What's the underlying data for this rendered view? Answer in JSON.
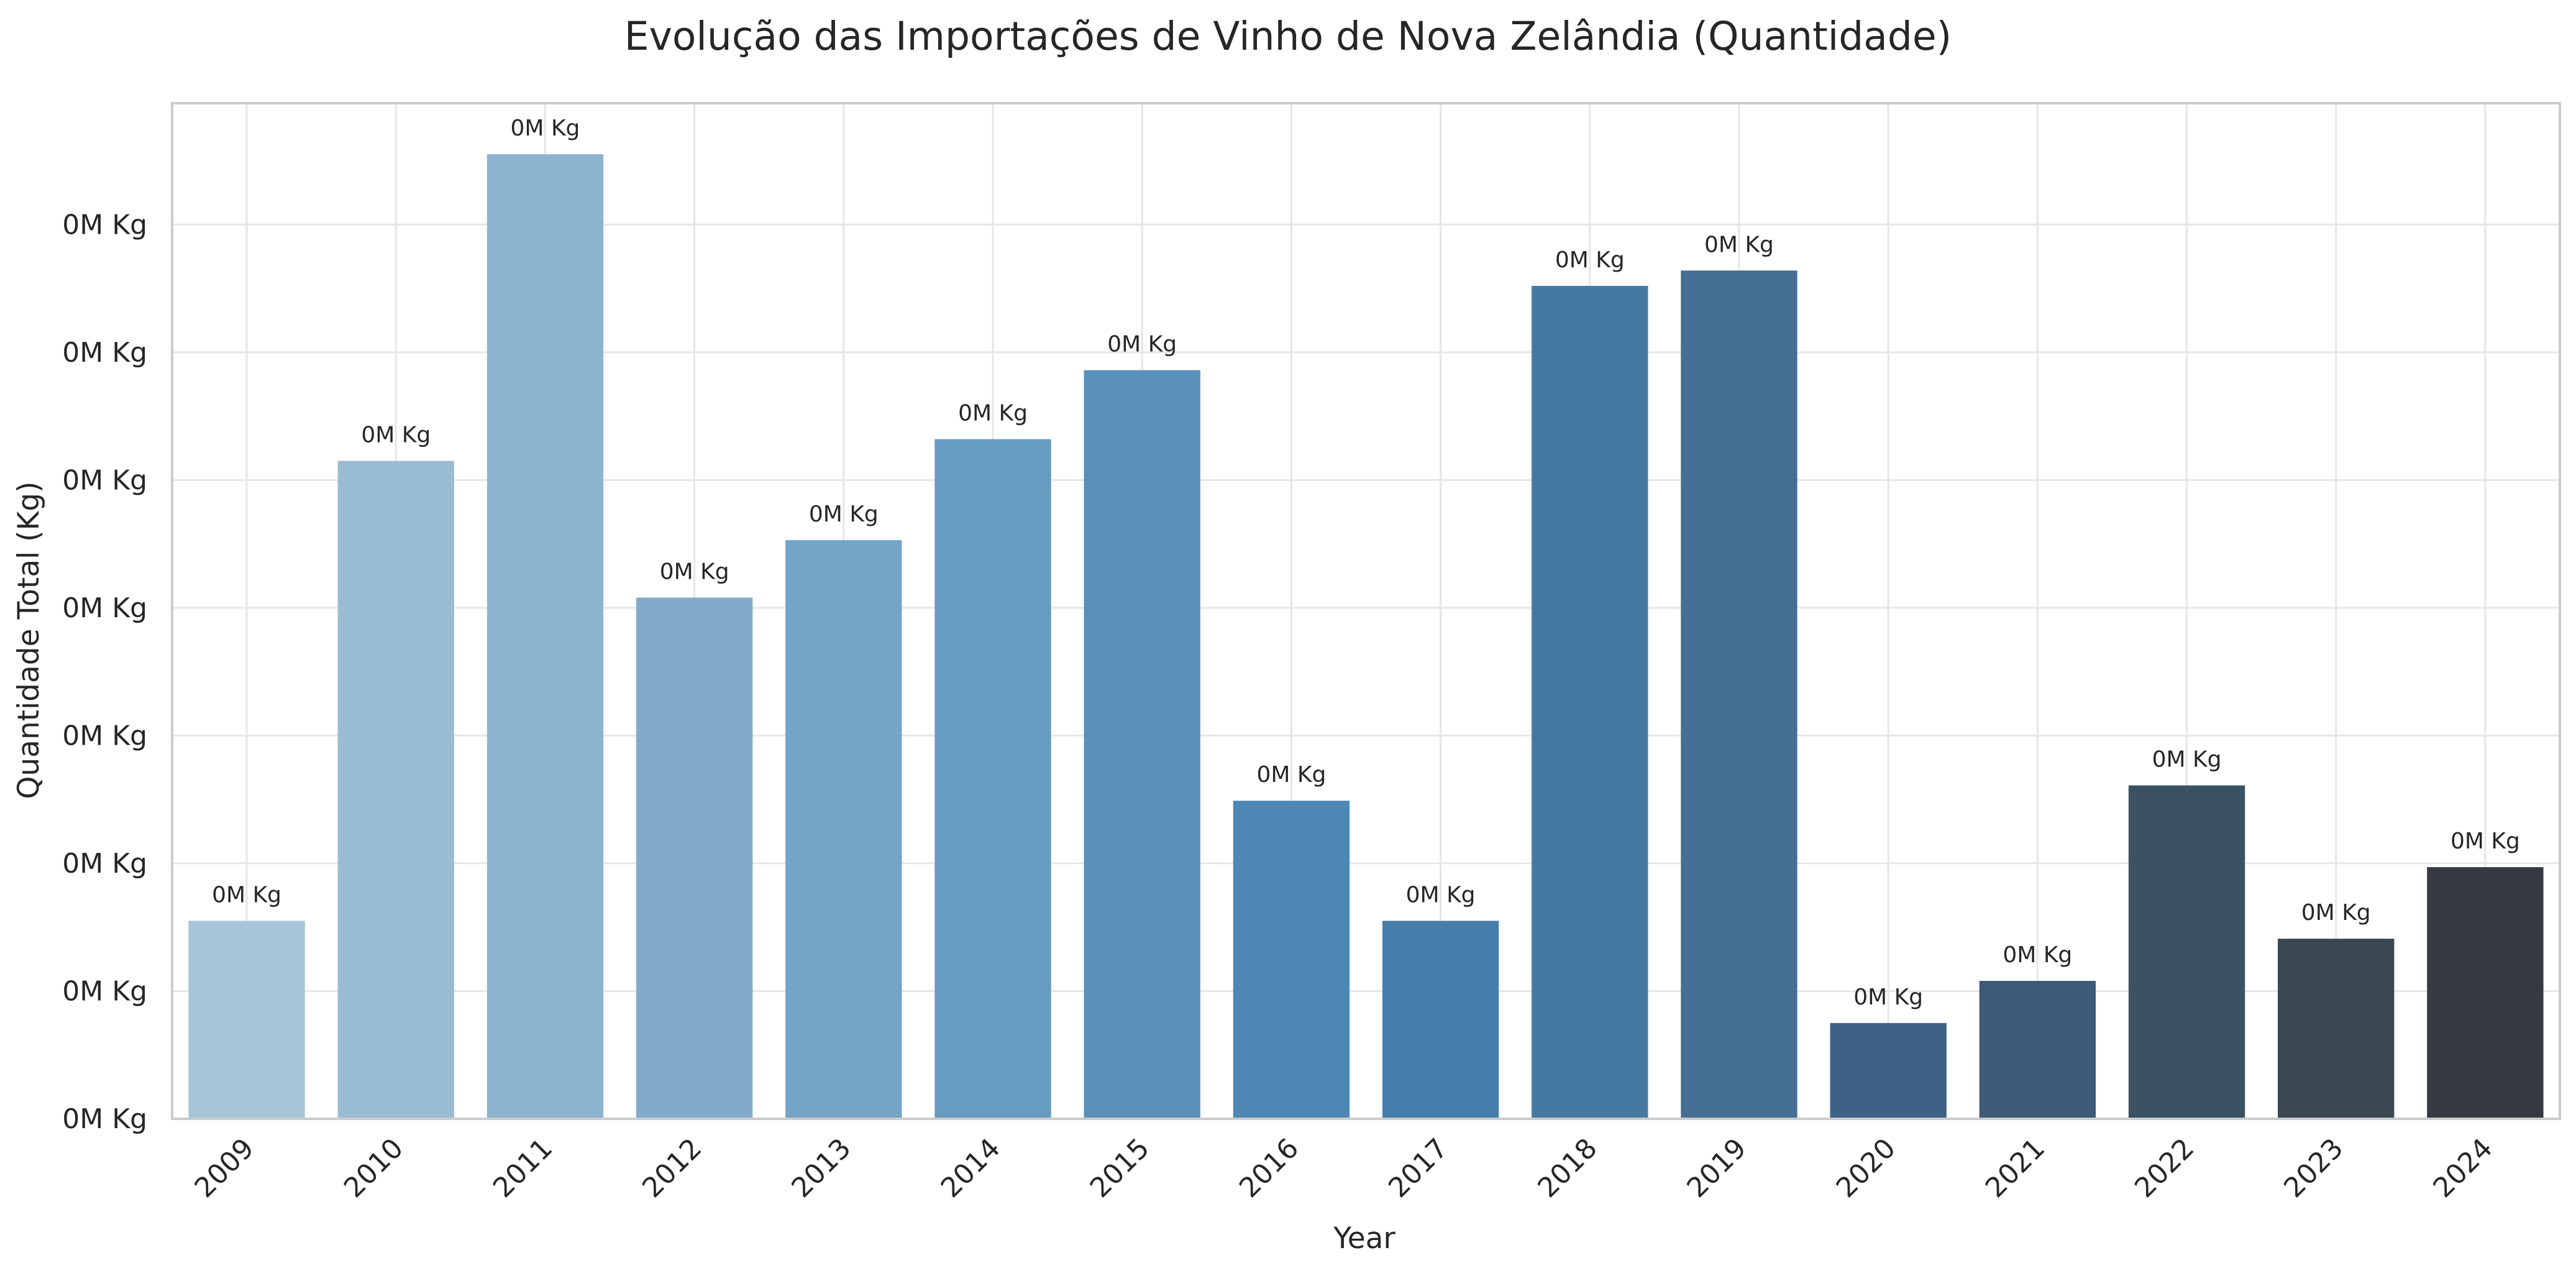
{
  "chart_data": {
    "type": "bar",
    "title": "Evolução das Importações de Vinho de Nova Zelândia (Quantidade)",
    "xlabel": "Year",
    "ylabel": "Quantidade Total (Kg)",
    "categories": [
      "2009",
      "2010",
      "2011",
      "2012",
      "2013",
      "2014",
      "2015",
      "2016",
      "2017",
      "2018",
      "2019",
      "2020",
      "2021",
      "2022",
      "2023",
      "2024"
    ],
    "values": [
      1550,
      5150,
      7550,
      4080,
      4530,
      5320,
      5860,
      2490,
      1550,
      6520,
      6640,
      750,
      1080,
      2610,
      1410,
      1970
    ],
    "value_labels": [
      "0M Kg",
      "0M Kg",
      "0M Kg",
      "0M Kg",
      "0M Kg",
      "0M Kg",
      "0M Kg",
      "0M Kg",
      "0M Kg",
      "0M Kg",
      "0M Kg",
      "0M Kg",
      "0M Kg",
      "0M Kg",
      "0M Kg",
      "0M Kg"
    ],
    "yticks": [
      0,
      1000,
      2000,
      3000,
      4000,
      5000,
      6000,
      7000
    ],
    "ytick_labels": [
      "0M Kg",
      "0M Kg",
      "0M Kg",
      "0M Kg",
      "0M Kg",
      "0M Kg",
      "0M Kg",
      "0M Kg"
    ],
    "ylim": [
      0,
      7950
    ],
    "grid": true,
    "colors": [
      "#a7c5da",
      "#9abcd3",
      "#8cb4cf",
      "#82abcb",
      "#74a4c6",
      "#679bc0",
      "#5a90b9",
      "#4c88b3",
      "#467eab",
      "#4679a1",
      "#446e93",
      "#3f6185",
      "#3d5a76",
      "#3a5263",
      "#394752",
      "#363a40"
    ]
  }
}
